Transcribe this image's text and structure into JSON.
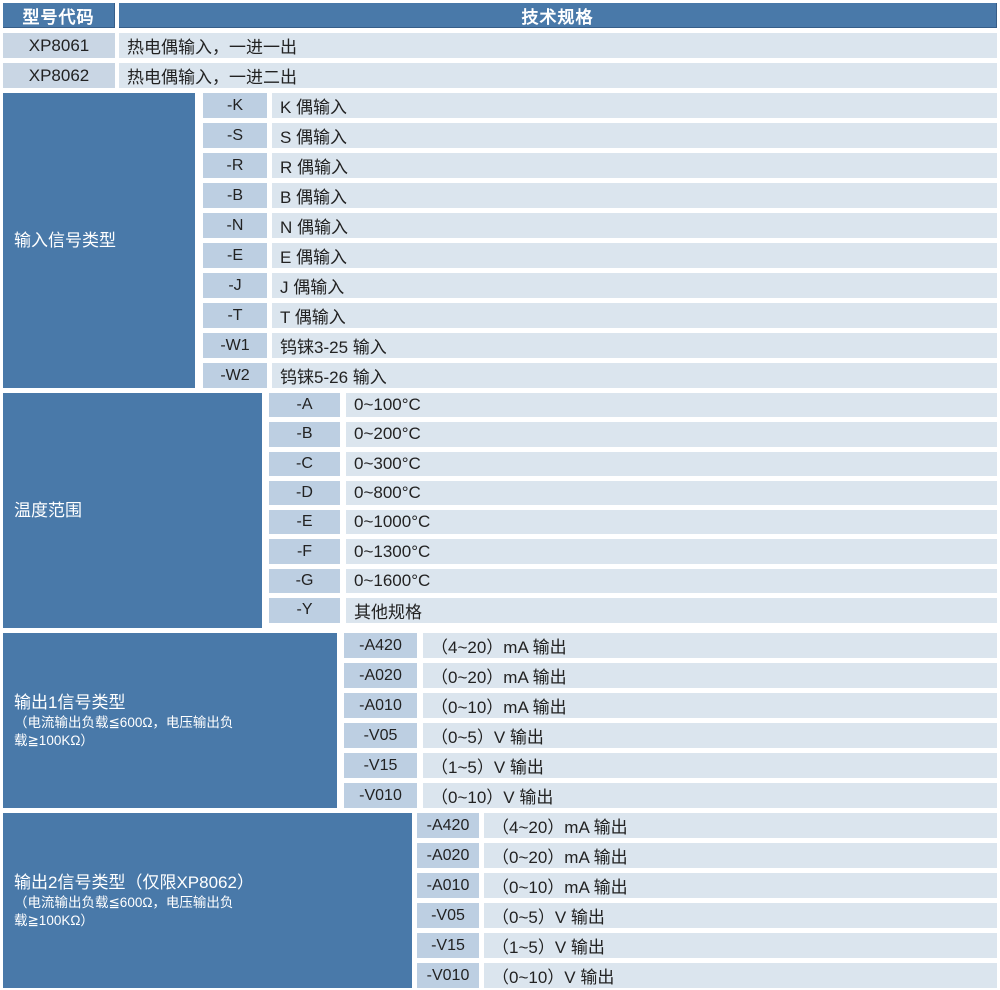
{
  "header": {
    "model_col": "型号代码",
    "spec_col": "技术规格"
  },
  "models": [
    {
      "code": "XP8061",
      "desc": "热电偶输入，一进一出"
    },
    {
      "code": "XP8062",
      "desc": "热电偶输入，一进二出"
    }
  ],
  "sections": [
    {
      "id": "input-signal-type",
      "label": "输入信号类型",
      "note_lines": [],
      "rows": [
        {
          "code": "-K",
          "desc": "K 偶输入"
        },
        {
          "code": "-S",
          "desc": "S 偶输入"
        },
        {
          "code": "-R",
          "desc": "R 偶输入"
        },
        {
          "code": "-B",
          "desc": "B 偶输入"
        },
        {
          "code": "-N",
          "desc": "N 偶输入"
        },
        {
          "code": "-E",
          "desc": "E 偶输入"
        },
        {
          "code": "-J",
          "desc": "J 偶输入"
        },
        {
          "code": "-T",
          "desc": "T 偶输入"
        },
        {
          "code": "-W1",
          "desc": "钨铼3-25 输入"
        },
        {
          "code": "-W2",
          "desc": "钨铼5-26 输入"
        }
      ]
    },
    {
      "id": "temperature-range",
      "label": "温度范围",
      "note_lines": [],
      "rows": [
        {
          "code": "-A",
          "desc": "0~100°C"
        },
        {
          "code": "-B",
          "desc": "0~200°C"
        },
        {
          "code": "-C",
          "desc": "0~300°C"
        },
        {
          "code": "-D",
          "desc": "0~800°C"
        },
        {
          "code": "-E",
          "desc": "0~1000°C"
        },
        {
          "code": "-F",
          "desc": "0~1300°C"
        },
        {
          "code": "-G",
          "desc": "0~1600°C"
        },
        {
          "code": "-Y",
          "desc": "其他规格"
        }
      ]
    },
    {
      "id": "output1-signal-type",
      "label": "输出1信号类型",
      "note_lines": [
        "（电流输出负载≦600Ω，电压输出负",
        "载≧100KΩ）"
      ],
      "rows": [
        {
          "code": "-A420",
          "desc": "（4~20）mA 输出"
        },
        {
          "code": "-A020",
          "desc": "（0~20）mA 输出"
        },
        {
          "code": "-A010",
          "desc": "（0~10）mA 输出"
        },
        {
          "code": "-V05",
          "desc": "（0~5）V 输出"
        },
        {
          "code": "-V15",
          "desc": "（1~5）V 输出"
        },
        {
          "code": "-V010",
          "desc": "（0~10）V 输出"
        }
      ]
    },
    {
      "id": "output2-signal-type",
      "label": "输出2信号类型（仅限XP8062）",
      "note_lines": [
        "（电流输出负载≦600Ω，电压输出负",
        "载≧100KΩ）"
      ],
      "rows": [
        {
          "code": "-A420",
          "desc": "（4~20）mA 输出"
        },
        {
          "code": "-A020",
          "desc": "（0~20）mA 输出"
        },
        {
          "code": "-A010",
          "desc": "（0~10）mA 输出"
        },
        {
          "code": "-V05",
          "desc": "（0~5）V 输出"
        },
        {
          "code": "-V15",
          "desc": "（1~5）V 输出"
        },
        {
          "code": "-V010",
          "desc": "（0~10）V 输出"
        }
      ]
    }
  ],
  "colors": {
    "header_bg": "#4979a9",
    "section_bg": "#4979a9",
    "model_cell_bg": "#c9d6e4",
    "code_cell_bg": "#bdcfe2",
    "desc_cell_bg": "#dbe5ee",
    "header_text": "#ffffff",
    "body_text": "#222222"
  }
}
